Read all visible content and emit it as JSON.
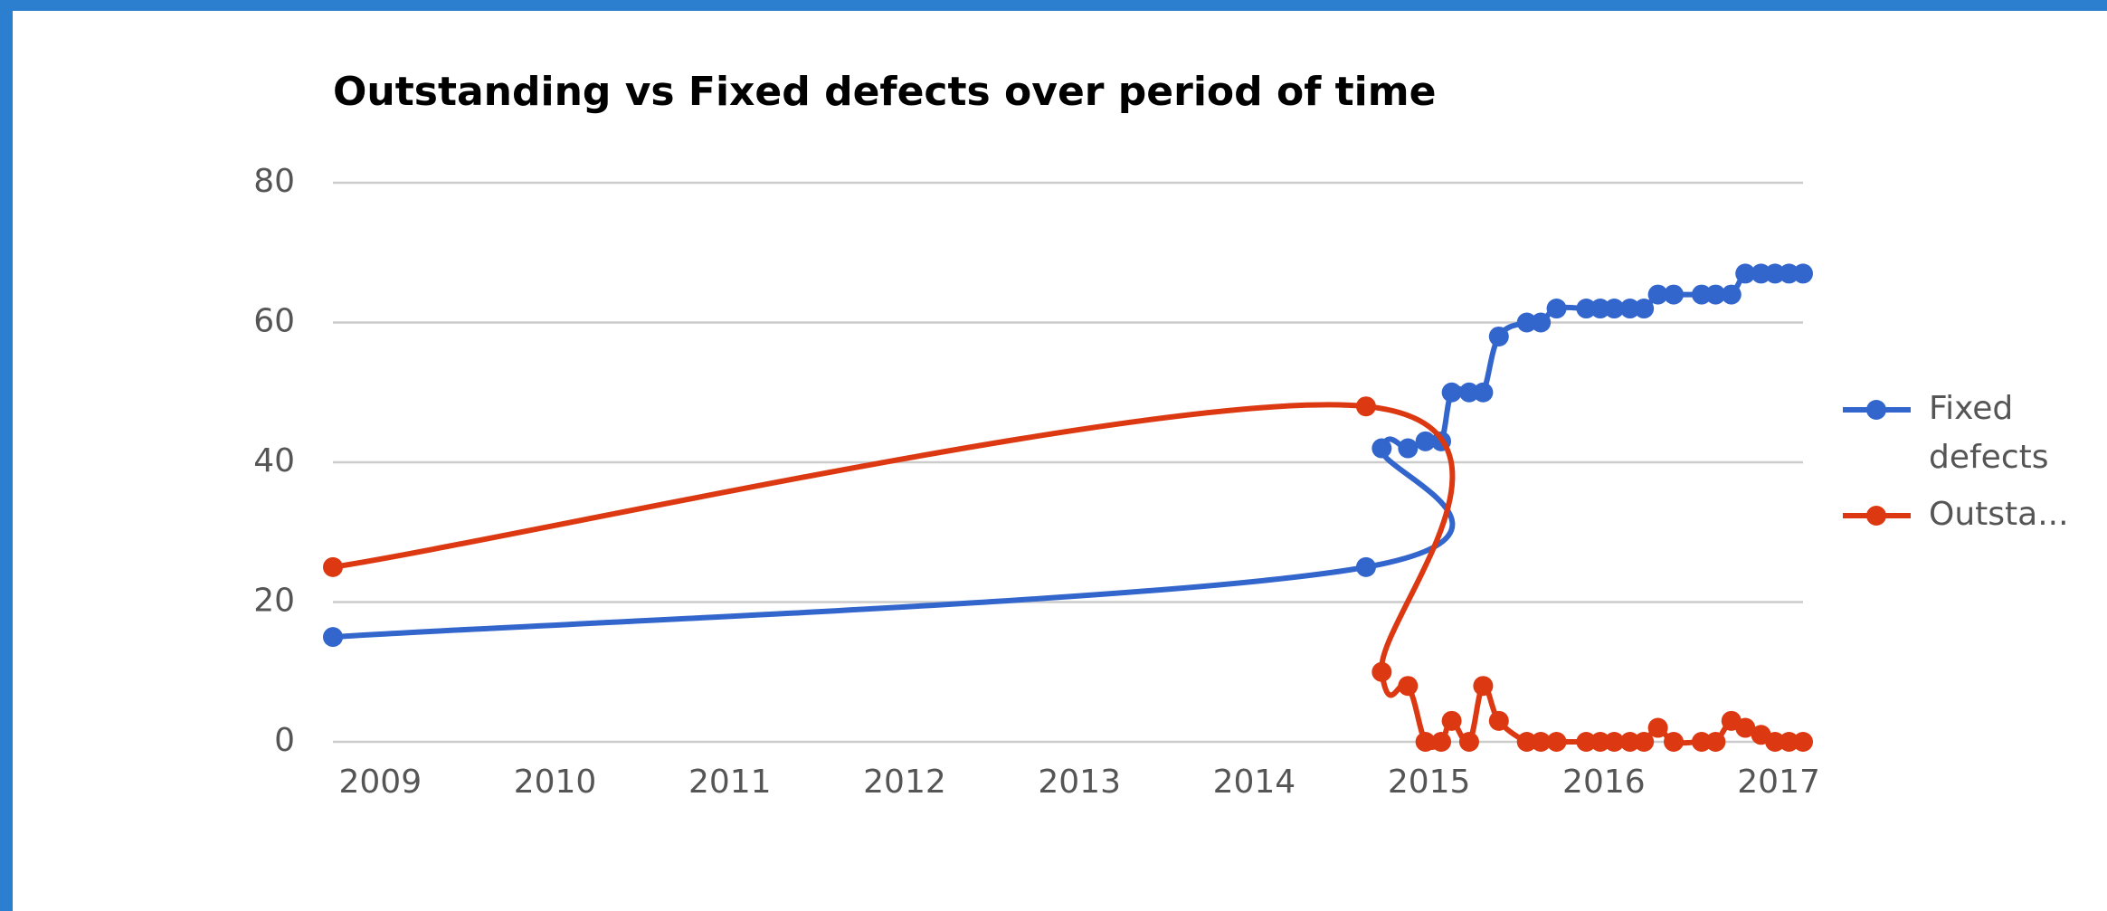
{
  "chart_data": {
    "type": "line",
    "title": "Outstanding vs Fixed defects over period of time",
    "x": [
      2008.75,
      2014.66,
      2014.75,
      2014.9,
      2015.0,
      2015.09,
      2015.15,
      2015.25,
      2015.33,
      2015.42,
      2015.58,
      2015.66,
      2015.75,
      2015.92,
      2016.0,
      2016.08,
      2016.17,
      2016.25,
      2016.33,
      2016.42,
      2016.58,
      2016.66,
      2016.75,
      2016.83,
      2016.92,
      2017.0,
      2017.08,
      2017.16
    ],
    "series": [
      {
        "name": "Fixed defects",
        "color": "#3366cc",
        "values": [
          15,
          25,
          42,
          42,
          43,
          43,
          50,
          50,
          50,
          58,
          60,
          60,
          62,
          62,
          62,
          62,
          62,
          62,
          64,
          64,
          64,
          64,
          64,
          67,
          67,
          67,
          67,
          67
        ]
      },
      {
        "name": "Outsta...",
        "color": "#dc3912",
        "values": [
          25,
          48,
          10,
          8,
          0,
          0,
          3,
          0,
          8,
          3,
          0,
          0,
          0,
          0,
          0,
          0,
          0,
          0,
          2,
          0,
          0,
          0,
          3,
          2,
          1,
          0,
          0,
          0
        ]
      }
    ],
    "xlim": [
      2008.75,
      2017.16
    ],
    "xticks": [
      2009,
      2010,
      2011,
      2012,
      2013,
      2014,
      2015,
      2016,
      2017
    ],
    "ylim": [
      0,
      80
    ],
    "yticks": [
      0,
      20,
      40,
      60,
      80
    ],
    "grid": true,
    "legend": "right"
  }
}
